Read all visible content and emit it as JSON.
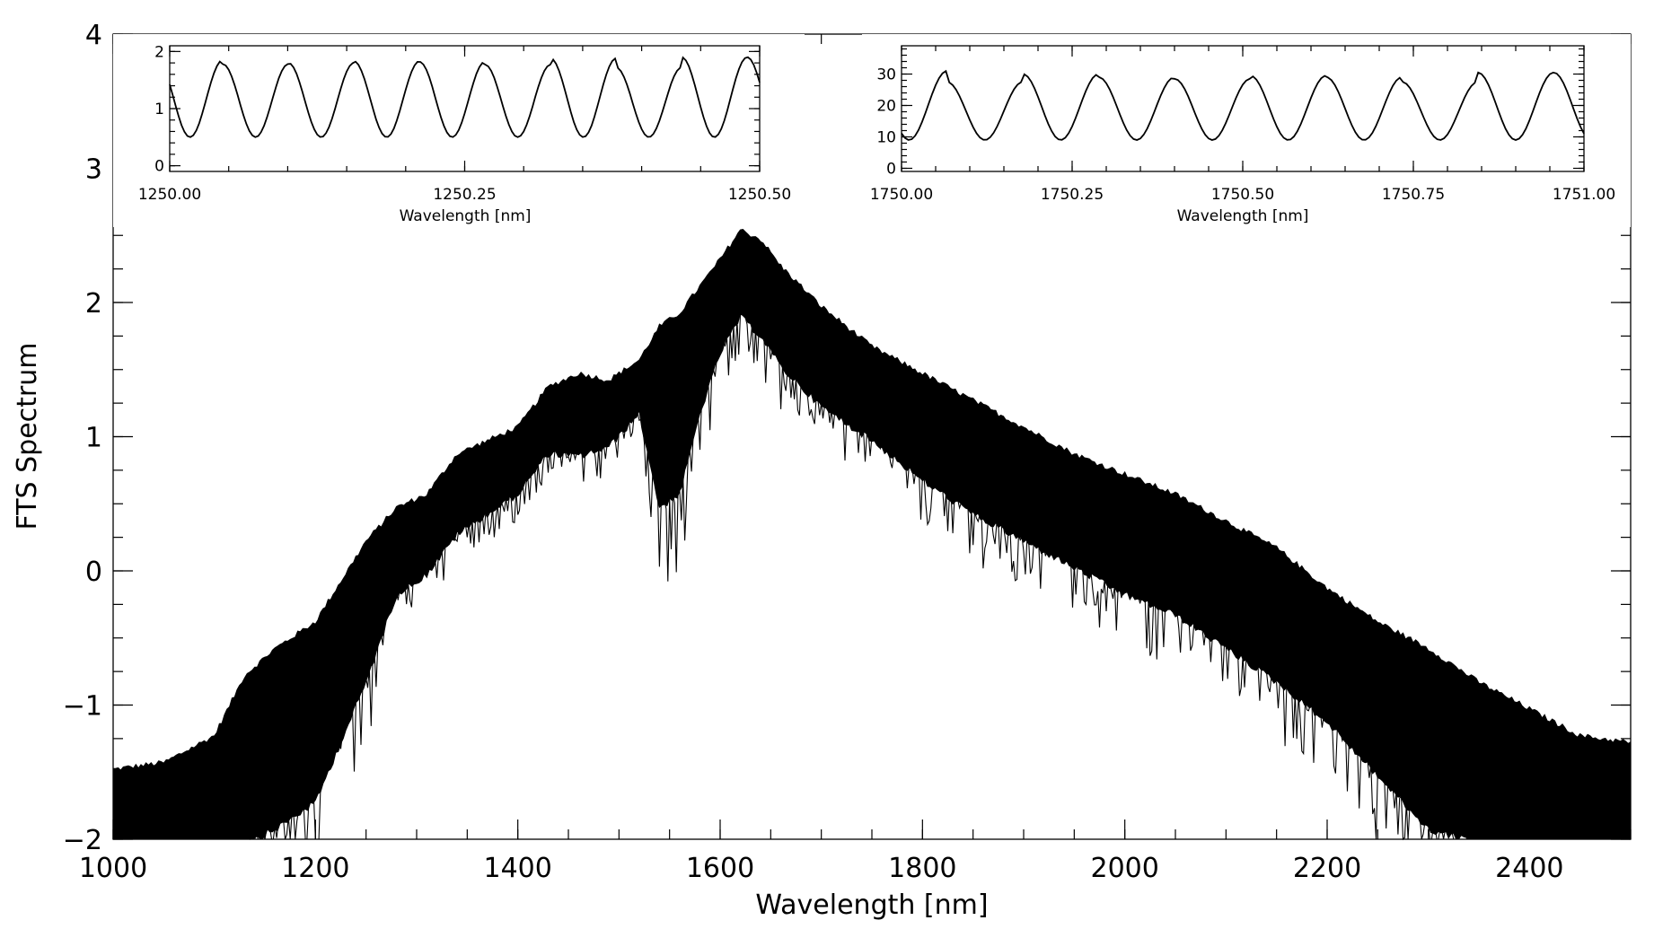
{
  "chart_data": [
    {
      "type": "line",
      "title": "",
      "xlabel": "Wavelength [nm]",
      "ylabel": "FTS Spectrum",
      "xlim": [
        1000,
        2500
      ],
      "ylim": [
        -2,
        4
      ],
      "x_ticks": [
        1000,
        1200,
        1400,
        1600,
        1800,
        2000,
        2200,
        2400
      ],
      "x_tick_labels": [
        "1000",
        "1200",
        "1400",
        "1600",
        "1800",
        "2000",
        "2200",
        "2400"
      ],
      "y_ticks": [
        -2,
        -1,
        0,
        1,
        2,
        3,
        4
      ],
      "y_tick_labels": [
        "−2",
        "−1",
        "0",
        "1",
        "2",
        "3",
        "4"
      ],
      "grid": false,
      "color": "#000000",
      "series": [
        {
          "x": [
            1000,
            1050,
            1100,
            1130,
            1160,
            1200,
            1250,
            1280,
            1310,
            1340,
            1370,
            1400,
            1430,
            1460,
            1490,
            1520,
            1540,
            1560,
            1580,
            1600,
            1620,
            1640,
            1660,
            1700,
            1750,
            1800,
            1850,
            1900,
            1950,
            2000,
            2050,
            2100,
            2150,
            2200,
            2250,
            2300,
            2350,
            2400,
            2450,
            2500
          ],
          "upper": [
            -1.5,
            -1.45,
            -1.25,
            -0.8,
            -0.6,
            -0.4,
            0.2,
            0.45,
            0.55,
            0.85,
            0.95,
            1.05,
            1.35,
            1.45,
            1.4,
            1.55,
            1.8,
            1.9,
            2.1,
            2.3,
            2.52,
            2.45,
            2.25,
            1.95,
            1.65,
            1.45,
            1.25,
            1.05,
            0.85,
            0.7,
            0.55,
            0.35,
            0.15,
            -0.15,
            -0.4,
            -0.6,
            -0.85,
            -1.05,
            -1.25,
            -1.3
          ],
          "lower": [
            -2.0,
            -2.0,
            -2.0,
            -2.0,
            -1.9,
            -1.7,
            -0.8,
            -0.15,
            0.0,
            0.3,
            0.45,
            0.6,
            0.9,
            0.88,
            0.95,
            1.2,
            0.5,
            0.6,
            1.2,
            1.65,
            1.92,
            1.78,
            1.55,
            1.25,
            1.0,
            0.7,
            0.45,
            0.25,
            0.05,
            -0.15,
            -0.3,
            -0.55,
            -0.8,
            -1.1,
            -1.5,
            -1.9,
            -2.0,
            -2.0,
            -2.0,
            -2.0
          ]
        }
      ]
    },
    {
      "type": "line",
      "title": "",
      "xlabel": "Wavelength [nm]",
      "ylabel": "",
      "xlim": [
        1250.0,
        1250.5
      ],
      "ylim": [
        -0.1,
        2.1
      ],
      "x_ticks": [
        1250.0,
        1250.25,
        1250.5
      ],
      "x_tick_labels": [
        "1250.00",
        "1250.25",
        "1250.50"
      ],
      "y_ticks": [
        0,
        1,
        2
      ],
      "y_tick_labels": [
        "0",
        "1",
        "2"
      ],
      "grid": false,
      "series": [
        {
          "fringe_count": 9,
          "phase": 0.19,
          "min": 0.5,
          "peaks": [
            1.85,
            1.78,
            1.8,
            1.83,
            1.82,
            1.77,
            1.88,
            1.72,
            1.9
          ]
        }
      ]
    },
    {
      "type": "line",
      "title": "",
      "xlabel": "Wavelength [nm]",
      "ylabel": "",
      "xlim": [
        1750.0,
        1751.0
      ],
      "ylim": [
        -1,
        39
      ],
      "x_ticks": [
        1750.0,
        1750.25,
        1750.5,
        1750.75,
        1751.0
      ],
      "x_tick_labels": [
        "1750.00",
        "1750.25",
        "1750.50",
        "1750.75",
        "1751.00"
      ],
      "y_ticks": [
        0,
        10,
        20,
        30
      ],
      "y_tick_labels": [
        "0",
        "10",
        "20",
        "30"
      ],
      "grid": false,
      "series": [
        {
          "fringe_count": 9,
          "phase": 0.4,
          "min": 9,
          "peaks": [
            31,
            27.5,
            30,
            29,
            28.5,
            29.5,
            29,
            27.5,
            30.5
          ]
        }
      ]
    }
  ]
}
